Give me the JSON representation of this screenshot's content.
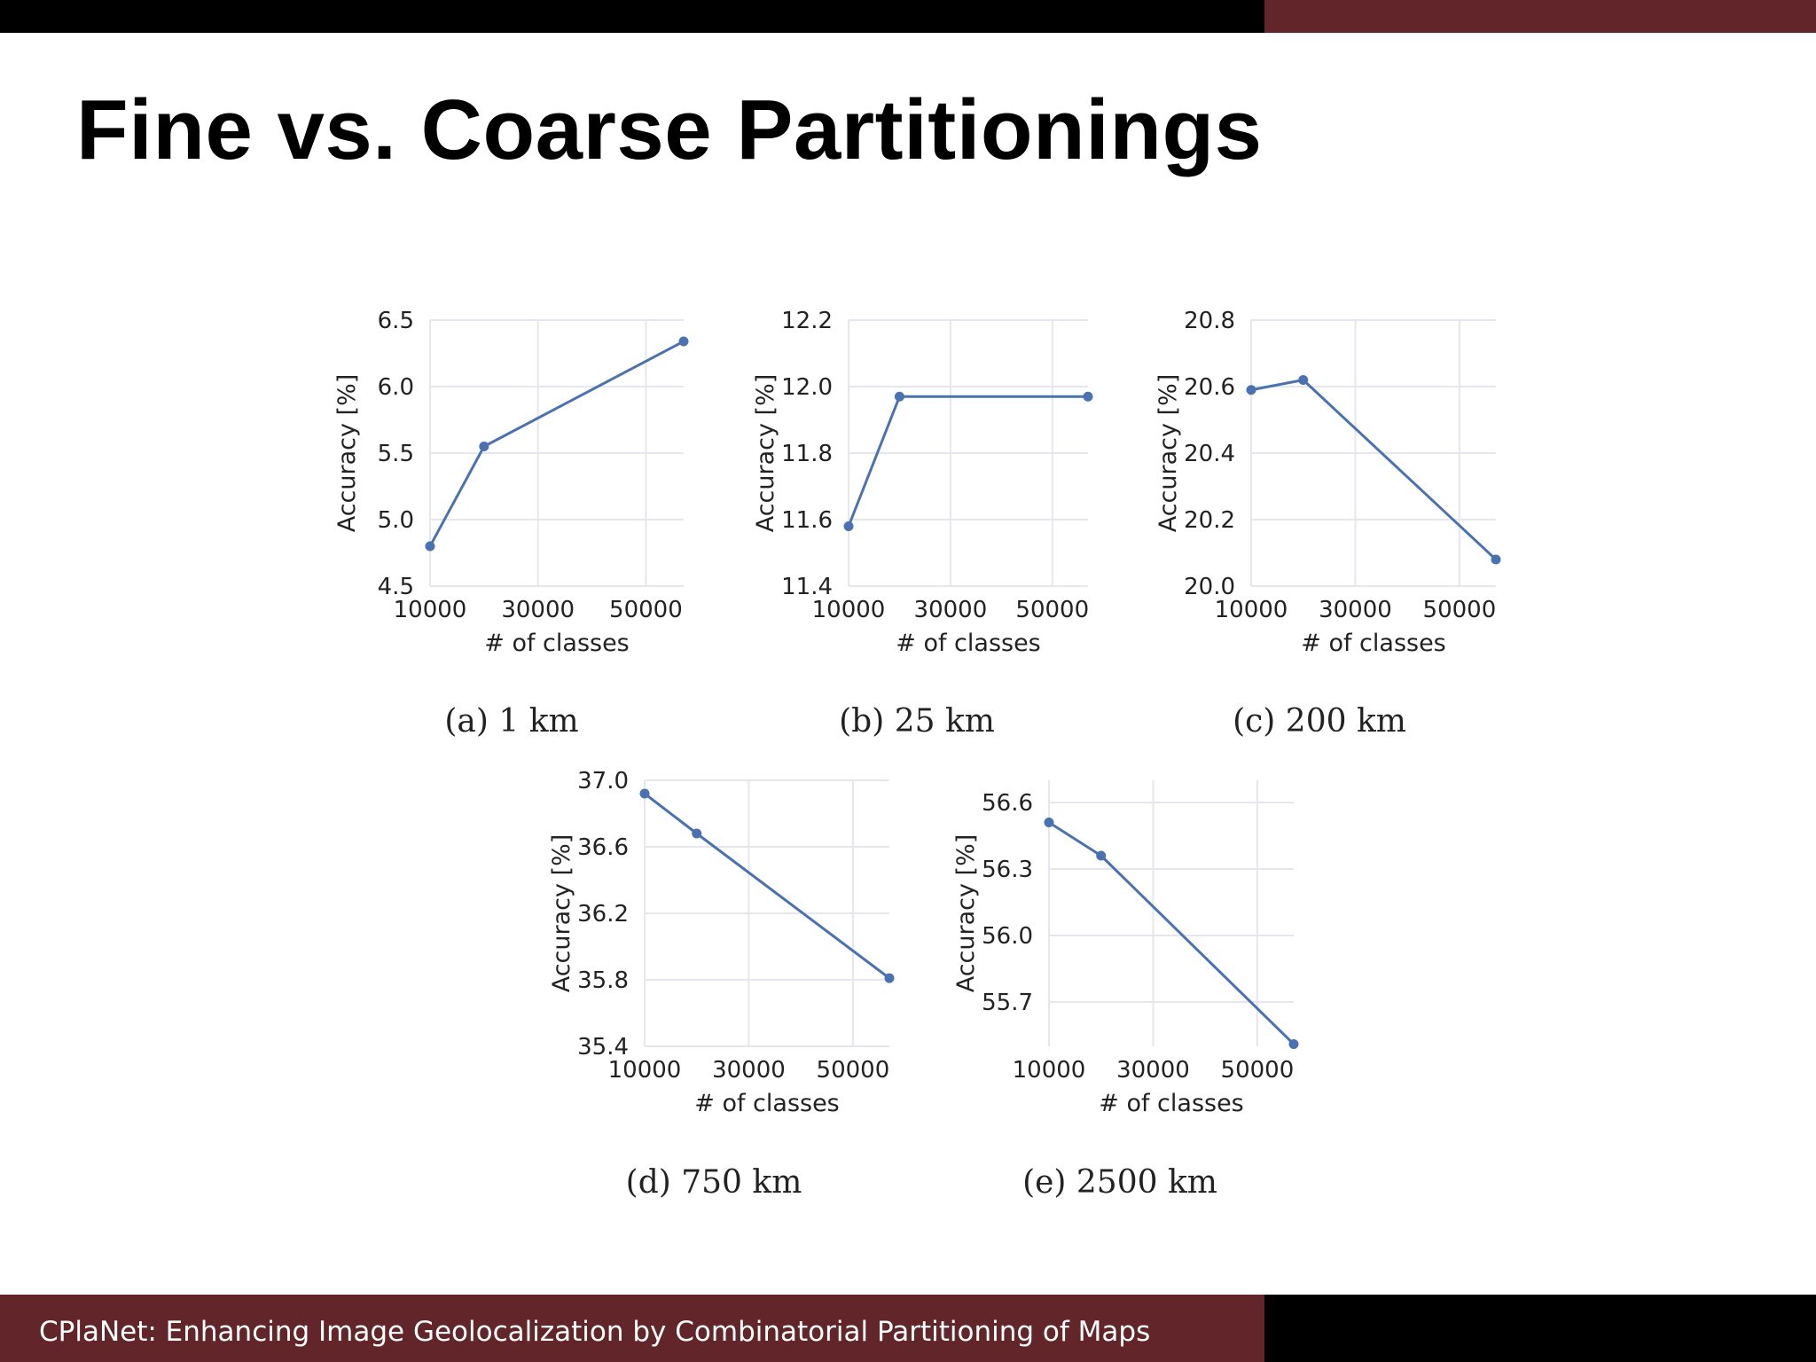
{
  "slide": {
    "title": "Fine vs. Coarse Partitionings",
    "footer": "CPlaNet: Enhancing Image Geolocalization by Combinatorial Partitioning of Maps"
  },
  "colors": {
    "top_bar_dark": "#000000",
    "top_bar_red": "#62262a",
    "footer_red": "#62262a",
    "footer_dark": "#000000",
    "line": "#4a72b0",
    "grid": "#e6e6ee"
  },
  "chart_data": [
    {
      "type": "line",
      "caption": "(a) 1 km",
      "xlabel": "# of classes",
      "ylabel": "Accuracy [%]",
      "x": [
        10000,
        20000,
        57000
      ],
      "y": [
        4.8,
        5.55,
        6.34
      ],
      "xlim": [
        10000,
        57000
      ],
      "ylim": [
        4.5,
        6.5
      ],
      "xticks": [
        10000,
        30000,
        50000
      ],
      "xtick_labels": [
        "10000",
        "30000",
        "50000"
      ],
      "yticks": [
        4.5,
        5.0,
        5.5,
        6.0,
        6.5
      ],
      "ytick_labels": [
        "4.5",
        "5.0",
        "5.5",
        "6.0",
        "6.5"
      ],
      "grid": true
    },
    {
      "type": "line",
      "caption": "(b) 25 km",
      "xlabel": "# of classes",
      "ylabel": "Accuracy [%]",
      "x": [
        10000,
        20000,
        57000
      ],
      "y": [
        11.58,
        11.97,
        11.97
      ],
      "xlim": [
        10000,
        57000
      ],
      "ylim": [
        11.4,
        12.2
      ],
      "xticks": [
        10000,
        30000,
        50000
      ],
      "xtick_labels": [
        "10000",
        "30000",
        "50000"
      ],
      "yticks": [
        11.4,
        11.6,
        11.8,
        12.0,
        12.2
      ],
      "ytick_labels": [
        "11.4",
        "11.6",
        "11.8",
        "12.0",
        "12.2"
      ],
      "grid": true
    },
    {
      "type": "line",
      "caption": "(c) 200 km",
      "xlabel": "# of classes",
      "ylabel": "Accuracy [%]",
      "x": [
        10000,
        20000,
        57000
      ],
      "y": [
        20.59,
        20.62,
        20.08
      ],
      "xlim": [
        10000,
        57000
      ],
      "ylim": [
        20.0,
        20.8
      ],
      "xticks": [
        10000,
        30000,
        50000
      ],
      "xtick_labels": [
        "10000",
        "30000",
        "50000"
      ],
      "yticks": [
        20.0,
        20.2,
        20.4,
        20.6,
        20.8
      ],
      "ytick_labels": [
        "20.0",
        "20.2",
        "20.4",
        "20.6",
        "20.8"
      ],
      "grid": true
    },
    {
      "type": "line",
      "caption": "(d) 750 km",
      "xlabel": "# of classes",
      "ylabel": "Accuracy [%]",
      "x": [
        10000,
        20000,
        57000
      ],
      "y": [
        36.92,
        36.68,
        35.81
      ],
      "xlim": [
        10000,
        57000
      ],
      "ylim": [
        35.4,
        37.0
      ],
      "xticks": [
        10000,
        30000,
        50000
      ],
      "xtick_labels": [
        "10000",
        "30000",
        "50000"
      ],
      "yticks": [
        35.4,
        35.8,
        36.2,
        36.6,
        37.0
      ],
      "ytick_labels": [
        "35.4",
        "35.8",
        "36.2",
        "36.6",
        "37.0"
      ],
      "grid": true
    },
    {
      "type": "line",
      "caption": "(e) 2500 km",
      "xlabel": "# of classes",
      "ylabel": "Accuracy [%]",
      "x": [
        10000,
        20000,
        57000
      ],
      "y": [
        56.51,
        56.36,
        55.51
      ],
      "xlim": [
        10000,
        57000
      ],
      "ylim": [
        55.5,
        56.7
      ],
      "xticks": [
        10000,
        30000,
        50000
      ],
      "xtick_labels": [
        "10000",
        "30000",
        "50000"
      ],
      "yticks": [
        55.7,
        56.0,
        56.3,
        56.6
      ],
      "ytick_labels": [
        "55.7",
        "56.0",
        "56.3",
        "56.6"
      ],
      "grid": true
    }
  ]
}
